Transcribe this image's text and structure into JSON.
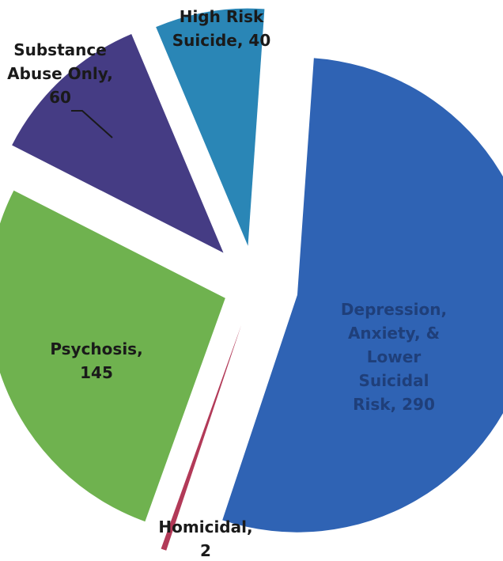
{
  "chart_data": {
    "type": "pie",
    "title": "",
    "slices": [
      {
        "label_lines": [
          "Depression,",
          "Anxiety, &",
          "Lower",
          "Suicidal",
          "Risk, 290"
        ],
        "value": 290,
        "color": "#2f63b4",
        "label_color": "#1f3f7a"
      },
      {
        "label_lines": [
          "Homicidal,",
          "2"
        ],
        "value": 2,
        "color": "#b23a58",
        "label_color": "#1a1a1a"
      },
      {
        "label_lines": [
          "Psychosis,",
          "145"
        ],
        "value": 145,
        "color": "#6fb24f",
        "label_color": "#1a1a1a"
      },
      {
        "label_lines": [
          "Substance",
          "Abuse Only,",
          "60"
        ],
        "value": 60,
        "color": "#453c84",
        "label_color": "#1a1a1a"
      },
      {
        "label_lines": [
          "High Risk",
          "Suicide, 40"
        ],
        "value": 40,
        "color": "#2a86b6",
        "label_color": "#1a1a1a"
      }
    ]
  }
}
